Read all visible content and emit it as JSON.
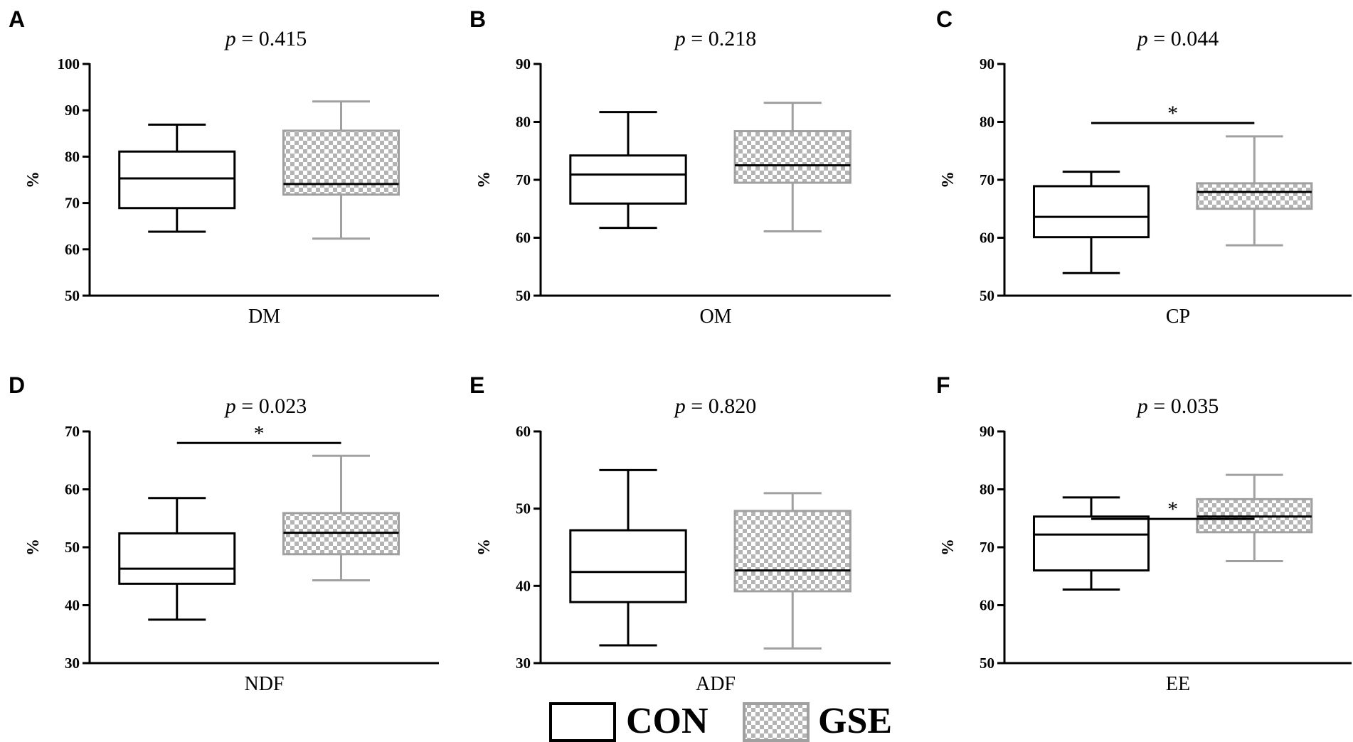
{
  "colors": {
    "con": "#000000",
    "gse": "#a0a0a0",
    "checker_dark": "#b4b4b4",
    "checker_light": "#ffffff"
  },
  "legend": {
    "con_label": "CON",
    "gse_label": "GSE"
  },
  "chart_data": [
    {
      "type": "box",
      "panel": "A",
      "title": "0.415",
      "p_prefix": "p",
      "xlabel": "DM",
      "ylabel": "%",
      "ylim": [
        50,
        100
      ],
      "yticks": [
        "50",
        "60",
        "70",
        "80",
        "90",
        "100"
      ],
      "significant": false,
      "series": [
        {
          "name": "CON",
          "min": 63.8,
          "q1": 68.9,
          "median": 75.3,
          "q3": 81.1,
          "max": 86.9
        },
        {
          "name": "GSE",
          "min": 62.3,
          "q1": 71.8,
          "median": 74.1,
          "q3": 85.6,
          "max": 91.9
        }
      ]
    },
    {
      "type": "box",
      "panel": "B",
      "title": "0.218",
      "p_prefix": "p",
      "xlabel": "OM",
      "ylabel": "%",
      "ylim": [
        50,
        90
      ],
      "yticks": [
        "50",
        "60",
        "70",
        "80",
        "90"
      ],
      "significant": false,
      "series": [
        {
          "name": "CON",
          "min": 61.7,
          "q1": 65.9,
          "median": 70.9,
          "q3": 74.2,
          "max": 81.7
        },
        {
          "name": "GSE",
          "min": 61.1,
          "q1": 69.5,
          "median": 72.5,
          "q3": 78.4,
          "max": 83.3
        }
      ]
    },
    {
      "type": "box",
      "panel": "C",
      "title": "0.044",
      "p_prefix": "p",
      "xlabel": "CP",
      "ylabel": "%",
      "ylim": [
        50,
        90
      ],
      "yticks": [
        "50",
        "60",
        "70",
        "80",
        "90"
      ],
      "significant": true,
      "sig_level": 79.8,
      "sig_label": "*",
      "series": [
        {
          "name": "CON",
          "min": 53.9,
          "q1": 60.1,
          "median": 63.6,
          "q3": 68.9,
          "max": 71.4
        },
        {
          "name": "GSE",
          "min": 58.7,
          "q1": 65.0,
          "median": 67.9,
          "q3": 69.4,
          "max": 77.5
        }
      ]
    },
    {
      "type": "box",
      "panel": "D",
      "title": "0.023",
      "p_prefix": "p",
      "xlabel": "NDF",
      "ylabel": "%",
      "ylim": [
        30,
        70
      ],
      "yticks": [
        "30",
        "40",
        "50",
        "60",
        "70"
      ],
      "significant": true,
      "sig_level": 68.0,
      "sig_label": "*",
      "series": [
        {
          "name": "CON",
          "min": 37.5,
          "q1": 43.7,
          "median": 46.3,
          "q3": 52.4,
          "max": 58.5
        },
        {
          "name": "GSE",
          "min": 44.3,
          "q1": 48.8,
          "median": 52.5,
          "q3": 55.9,
          "max": 65.8
        }
      ]
    },
    {
      "type": "box",
      "panel": "E",
      "title": "0.820",
      "p_prefix": "p",
      "xlabel": "ADF",
      "ylabel": "%",
      "ylim": [
        30,
        60
      ],
      "yticks": [
        "30",
        "40",
        "50",
        "60"
      ],
      "significant": false,
      "series": [
        {
          "name": "CON",
          "min": 32.3,
          "q1": 37.9,
          "median": 41.8,
          "q3": 47.2,
          "max": 55.0
        },
        {
          "name": "GSE",
          "min": 31.9,
          "q1": 39.3,
          "median": 42.0,
          "q3": 49.7,
          "max": 52.0
        }
      ]
    },
    {
      "type": "box",
      "panel": "F",
      "title": "0.035",
      "p_prefix": "p",
      "xlabel": "EE",
      "ylabel": "%",
      "ylim": [
        50,
        90
      ],
      "yticks": [
        "50",
        "60",
        "70",
        "80",
        "90"
      ],
      "significant": true,
      "sig_level": 74.9,
      "sig_label": "*",
      "series": [
        {
          "name": "CON",
          "min": 62.7,
          "q1": 66.0,
          "median": 72.2,
          "q3": 75.3,
          "max": 78.6
        },
        {
          "name": "GSE",
          "min": 67.6,
          "q1": 72.6,
          "median": 75.3,
          "q3": 78.3,
          "max": 82.5
        }
      ]
    }
  ]
}
